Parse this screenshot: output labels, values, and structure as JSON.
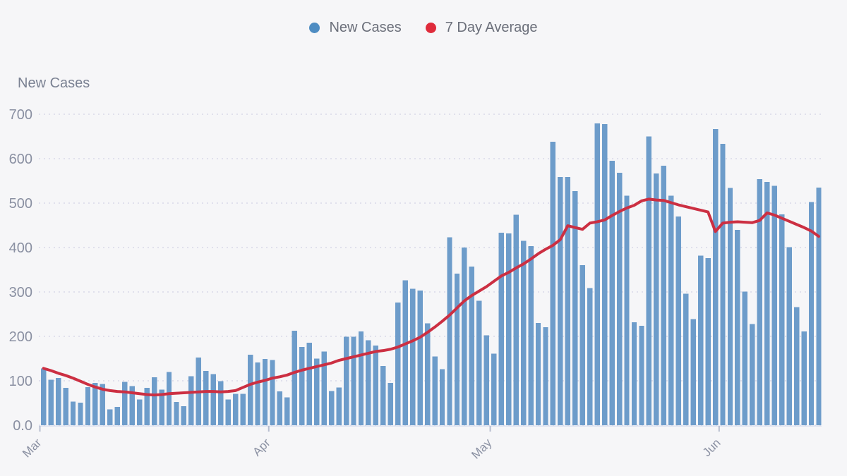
{
  "legend": {
    "items": [
      {
        "label": "New Cases",
        "color": "#4e8cc2"
      },
      {
        "label": "7 Day Average",
        "color": "#df2b3b"
      }
    ]
  },
  "colors": {
    "background": "#f6f6f8",
    "grid": "#d2d4e4",
    "axis_text": "#8a90a2",
    "tick": "#b7bdcf",
    "baseline": "#dfe2f0"
  },
  "chart_data": {
    "type": "bar",
    "title": "",
    "ylabel": "New Cases",
    "xlabel": "",
    "ylim": [
      0,
      700
    ],
    "grid": "horizontal-dashed",
    "legend_position": "top-center",
    "y_tick_values": [
      0,
      100,
      200,
      300,
      400,
      500,
      600,
      700
    ],
    "y_tick_labels": [
      "0.0",
      "100",
      "200",
      "300",
      "400",
      "500",
      "600",
      "700"
    ],
    "x_ticks": [
      {
        "label": "Mar",
        "day_index": 0
      },
      {
        "label": "Apr",
        "day_index": 31
      },
      {
        "label": "May",
        "day_index": 61
      },
      {
        "label": "Jun",
        "day_index": 92
      }
    ],
    "series": [
      {
        "name": "New Cases",
        "type": "bar",
        "color": "#6d9cca",
        "values": [
          128,
          102,
          106,
          84,
          53,
          51,
          86,
          95,
          93,
          36,
          41,
          98,
          88,
          58,
          84,
          108,
          80,
          120,
          52,
          43,
          110,
          152,
          122,
          115,
          99,
          58,
          71,
          71,
          159,
          141,
          149,
          147,
          76,
          63,
          213,
          176,
          186,
          150,
          166,
          77,
          85,
          199,
          199,
          211,
          191,
          179,
          133,
          95,
          276,
          326,
          307,
          303,
          229,
          155,
          126,
          423,
          341,
          400,
          357,
          280,
          202,
          161,
          433,
          432,
          474,
          415,
          403,
          230,
          221,
          638,
          559,
          559,
          527,
          360,
          309,
          679,
          678,
          595,
          568,
          517,
          232,
          224,
          650,
          567,
          584,
          517,
          470,
          296,
          239,
          382,
          376,
          667,
          633,
          534,
          440,
          301,
          228,
          554,
          548,
          539,
          475,
          401,
          266,
          211,
          502,
          535
        ]
      },
      {
        "name": "7 Day Average",
        "type": "line",
        "color": "#cc2f42",
        "values": [
          128,
          123,
          117,
          112,
          106,
          99,
          92,
          86,
          81,
          78,
          76,
          75,
          73,
          71,
          69,
          68,
          69,
          71,
          72,
          73,
          74,
          75,
          76,
          76,
          75,
          76,
          78,
          85,
          92,
          97,
          101,
          106,
          109,
          113,
          119,
          124,
          128,
          132,
          136,
          140,
          146,
          150,
          154,
          158,
          162,
          166,
          168,
          171,
          176,
          183,
          190,
          198,
          209,
          221,
          234,
          248,
          264,
          280,
          292,
          302,
          312,
          324,
          336,
          344,
          354,
          363,
          374,
          386,
          396,
          405,
          418,
          449,
          445,
          441,
          455,
          458,
          462,
          472,
          481,
          489,
          495,
          505,
          509,
          507,
          506,
          501,
          496,
          492,
          488,
          484,
          480,
          436,
          455,
          457,
          458,
          457,
          456,
          461,
          478,
          473,
          466,
          459,
          452,
          445,
          437,
          425
        ]
      }
    ]
  }
}
